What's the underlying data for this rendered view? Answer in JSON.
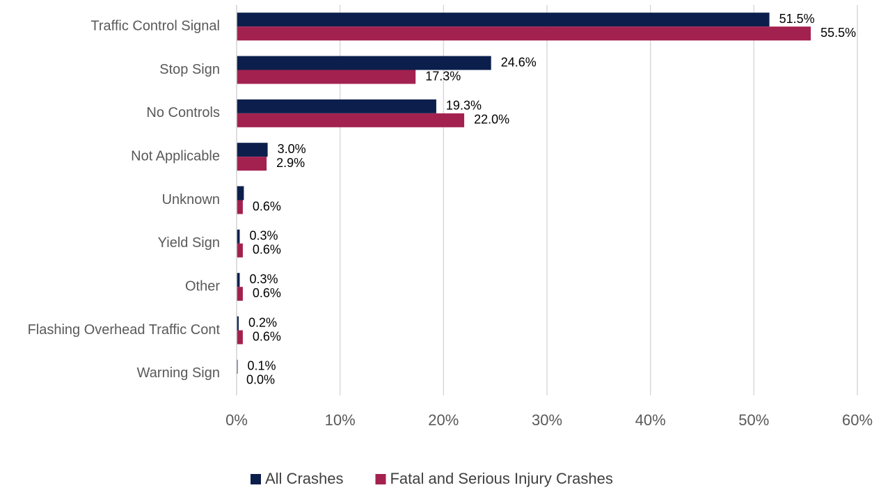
{
  "chart_data": {
    "type": "hbar",
    "categories": [
      "Traffic Control Signal",
      "Stop Sign",
      "No Controls",
      "Not Applicable",
      "Unknown",
      "Yield Sign",
      "Other",
      "Flashing Overhead Traffic Cont",
      "Warning Sign"
    ],
    "series": [
      {
        "name": "All Crashes",
        "color": "#0c1f4c",
        "values": [
          51.5,
          24.6,
          19.3,
          3.0,
          0.7,
          0.3,
          0.3,
          0.2,
          0.1
        ],
        "value_labels": [
          "51.5%",
          "24.6%",
          "19.3%",
          "3.0%",
          null,
          "0.3%",
          "0.3%",
          "0.2%",
          "0.1%"
        ]
      },
      {
        "name": "Fatal and Serious Injury Crashes",
        "color": "#a3214f",
        "values": [
          55.5,
          17.3,
          22.0,
          2.9,
          0.6,
          0.6,
          0.6,
          0.6,
          0.0
        ],
        "value_labels": [
          "55.5%",
          "17.3%",
          "22.0%",
          "2.9%",
          "0.6%",
          "0.6%",
          "0.6%",
          "0.6%",
          "0.0%"
        ]
      }
    ],
    "xlim": [
      0,
      60
    ],
    "xticks": [
      {
        "value": 0,
        "label": "0%"
      },
      {
        "value": 10,
        "label": "10%"
      },
      {
        "value": 20,
        "label": "20%"
      },
      {
        "value": 30,
        "label": "30%"
      },
      {
        "value": 40,
        "label": "40%"
      },
      {
        "value": 50,
        "label": "50%"
      },
      {
        "value": 60,
        "label": "60%"
      }
    ],
    "grid": true,
    "legend": "bottom"
  }
}
